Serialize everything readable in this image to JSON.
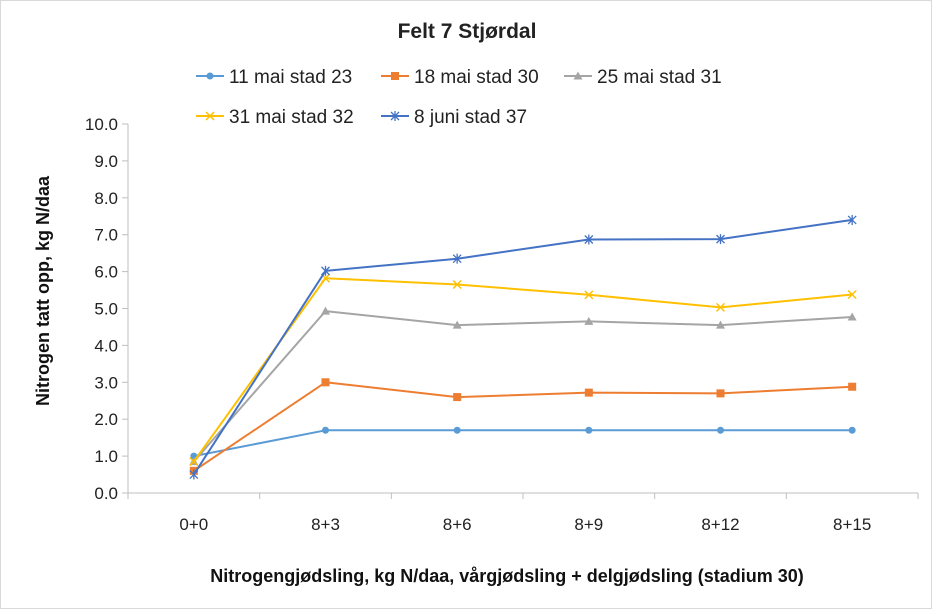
{
  "chart_data": {
    "type": "line",
    "title": "Felt 7 Stjørdal",
    "xlabel": "Nitrogengjødsling, kg N/daa, vårgjødsling + delgjødsling (stadium 30)",
    "ylabel": "Nitrogen tatt opp, kg N/daa",
    "categories": [
      "0+0",
      "8+3",
      "8+6",
      "8+9",
      "8+12",
      "8+15"
    ],
    "ylim": [
      0,
      10
    ],
    "yticks": [
      "0.0",
      "1.0",
      "2.0",
      "3.0",
      "4.0",
      "5.0",
      "6.0",
      "7.0",
      "8.0",
      "9.0",
      "10.0"
    ],
    "grid": false,
    "legend_position": "top",
    "series": [
      {
        "name": "11 mai stad 23",
        "color": "#5b9bd5",
        "marker": "circle",
        "values": [
          1.0,
          1.7,
          1.7,
          1.7,
          1.7,
          1.7
        ]
      },
      {
        "name": "18 mai stad 30",
        "color": "#ed7d31",
        "marker": "square",
        "values": [
          0.6,
          3.0,
          2.6,
          2.72,
          2.7,
          2.88
        ]
      },
      {
        "name": "25 mai stad 31",
        "color": "#a5a5a5",
        "marker": "triangle",
        "values": [
          0.85,
          4.93,
          4.55,
          4.65,
          4.55,
          4.77
        ]
      },
      {
        "name": "31 mai stad 32",
        "color": "#ffc000",
        "marker": "x",
        "values": [
          0.85,
          5.82,
          5.65,
          5.37,
          5.03,
          5.38
        ]
      },
      {
        "name": "8 juni stad 37",
        "color": "#4472c4",
        "marker": "star",
        "values": [
          0.5,
          6.02,
          6.35,
          6.87,
          6.88,
          7.4
        ]
      }
    ]
  }
}
